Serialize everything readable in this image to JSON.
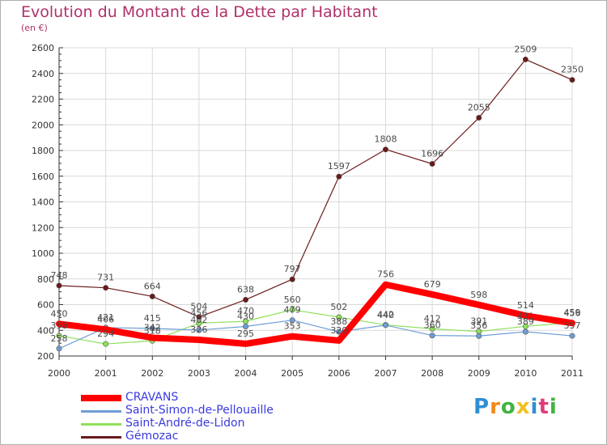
{
  "header": {
    "title": "Evolution du Montant de la Dette par Habitant",
    "subtitle": "(en €)"
  },
  "chart_data": {
    "type": "line",
    "title": "Evolution du Montant de la Dette par Habitant",
    "subtitle": "(en €)",
    "xlabel": "",
    "ylabel": "",
    "x": [
      "2000",
      "2001",
      "2002",
      "2003",
      "2004",
      "2005",
      "2006",
      "2007",
      "2008",
      "2009",
      "2010",
      "2011"
    ],
    "ylim": [
      200,
      2600
    ],
    "yticks": [
      200,
      400,
      600,
      800,
      1000,
      1200,
      1400,
      1600,
      1800,
      2000,
      2200,
      2400,
      2600
    ],
    "grid": true,
    "legend_position": "bottom-left",
    "series": [
      {
        "name": "CRAVANS",
        "color": "#ff0000",
        "values": [
          450,
          406,
          342,
          326,
          295,
          353,
          320,
          756,
          679,
          598,
          514,
          456
        ]
      },
      {
        "name": "Saint-Simon-de-Pellouaille",
        "color": "#6f9ed6",
        "values": [
          258,
          421,
          415,
          402,
          430,
          479,
          388,
          440,
          360,
          356,
          389,
          357
        ]
      },
      {
        "name": "Saint-André-de-Lidon",
        "color": "#8ee05a",
        "values": [
          358,
          294,
          318,
          456,
          470,
          560,
          502,
          442,
          412,
          391,
          431,
          459
        ]
      },
      {
        "name": "Gémozac",
        "color": "#6b1a1a",
        "values": [
          748,
          731,
          664,
          504,
          638,
          797,
          1597,
          1808,
          1696,
          2055,
          2509,
          2350
        ]
      }
    ]
  },
  "logo": {
    "letters": [
      "P",
      "r",
      "o",
      "x",
      "i",
      "t",
      "i"
    ],
    "colors": [
      "#2e8fd6",
      "#f08a1a",
      "#3fb43f",
      "#f0c020",
      "#2e8fd6",
      "#e03a7a",
      "#3fb43f"
    ]
  }
}
